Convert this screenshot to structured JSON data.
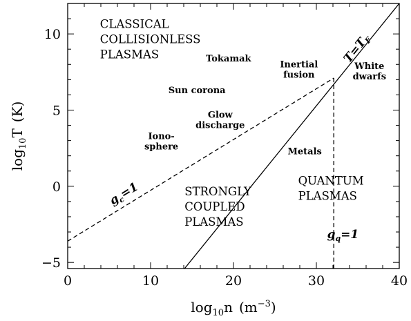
{
  "chart_data": {
    "type": "line",
    "xlabel": {
      "prefix": "log",
      "sub": "10",
      "main": "n",
      "unit_open": "(m",
      "unit_sup": "−3",
      "unit_close": ")"
    },
    "ylabel": {
      "prefix": "log",
      "sub": "10",
      "main": "T",
      "unit": "(K)"
    },
    "xlim": [
      0,
      40
    ],
    "ylim": [
      -5.4,
      12
    ],
    "x_ticks": [
      0,
      10,
      20,
      30,
      40
    ],
    "y_ticks": [
      -5,
      0,
      5,
      10
    ],
    "x_tick_labels": [
      "0",
      "10",
      "20",
      "30",
      "40"
    ],
    "y_tick_labels": [
      "−5",
      "0",
      "5",
      "10"
    ],
    "grid": false,
    "series": [
      {
        "line_style": "solid",
        "x": [
          14.1,
          40
        ],
        "y": [
          -5.4,
          12
        ]
      },
      {
        "line_style": "dashed",
        "x": [
          0,
          32.1
        ],
        "y": [
          -3.6,
          7.1
        ]
      },
      {
        "line_style": "dashed",
        "x": [
          32.1,
          32.1
        ],
        "y": [
          7.1,
          -5.4
        ]
      }
    ],
    "line_labels": [
      {
        "text_main": "T=T",
        "text_sub": "F",
        "x": 35.2,
        "y": 8.9,
        "rotate": true
      },
      {
        "text_main": "g",
        "text_sub": "c",
        "text_after": "=1",
        "x": 7.0,
        "y": -0.7,
        "rotate": true
      },
      {
        "text_main": "g",
        "text_sub": "q",
        "text_after": "=1",
        "x": 33.2,
        "y": -3.4,
        "rotate": false
      }
    ],
    "region_labels": [
      {
        "lines": [
          "CLASSICAL",
          "COLLISIONLESS",
          "PLASMAS"
        ],
        "x": 3.9,
        "y": 10.4
      },
      {
        "lines": [
          "STRONGLY",
          "COUPLED",
          "PLASMAS"
        ],
        "x": 14.1,
        "y": -0.6
      },
      {
        "lines": [
          "QUANTUM",
          "PLASMAS"
        ],
        "x": 27.8,
        "y": 0.1
      }
    ],
    "annotations": [
      {
        "lines": [
          "Tokamak"
        ],
        "x": 19.4,
        "y": 8.2
      },
      {
        "lines": [
          "Inertial",
          "fusion"
        ],
        "x": 27.9,
        "y": 7.8
      },
      {
        "lines": [
          "White",
          "dwarfs"
        ],
        "x": 36.4,
        "y": 7.7
      },
      {
        "lines": [
          "Sun corona"
        ],
        "x": 15.6,
        "y": 6.1
      },
      {
        "lines": [
          "Glow",
          "discharge"
        ],
        "x": 18.4,
        "y": 4.5
      },
      {
        "lines": [
          "Iono-",
          "sphere"
        ],
        "x": 11.3,
        "y": 3.1
      },
      {
        "lines": [
          "Metals"
        ],
        "x": 28.6,
        "y": 2.1
      }
    ]
  }
}
